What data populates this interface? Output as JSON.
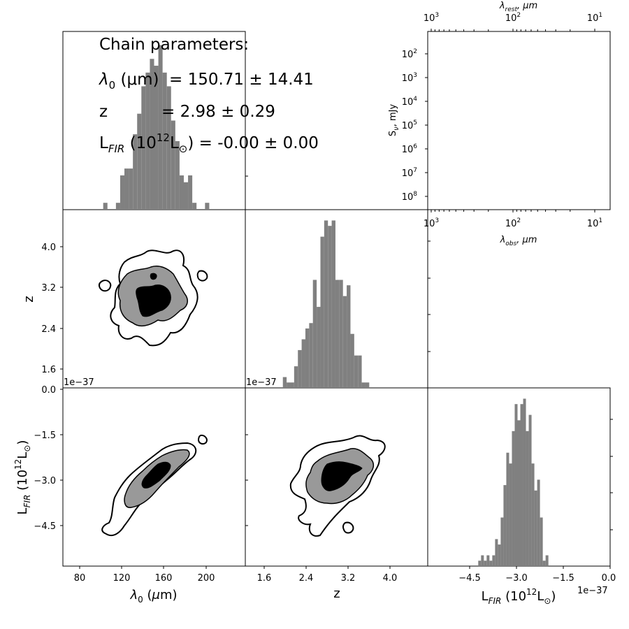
{
  "style": {
    "hist_color": "#808080",
    "contour_outer_fill": "#ffffff",
    "contour_mid_fill": "#999999",
    "contour_inner_fill": "#000000",
    "frame_color": "#000000"
  },
  "chain_parameters": {
    "heading": "Chain parameters:",
    "lines": [
      {
        "label": "λ0 (μm)",
        "label_sym": "λ",
        "label_sub": "0",
        "label_rest": " (μm)",
        "value": "= 150.71 ± 14.41"
      },
      {
        "label": "z",
        "value": "= 2.98 ± 0.29"
      },
      {
        "label": "LFIR (10^12 L⊙)",
        "value": "= -0.00 ± 0.00"
      }
    ]
  },
  "axes_text": {
    "lambda_label": "λ0 (μm)",
    "z_label": "z",
    "lfir_label": "LFIR (10^12 L⊙)",
    "offset_1e_37": "1e−37",
    "sed_ylabel": "Sν, mJy",
    "sed_xlabel_top": "λrest, μm",
    "sed_xlabel_bottom": "λobs, μm"
  },
  "chart_data": [
    {
      "type": "histogram",
      "panel": "lambda0-marginal",
      "xlim": [
        64,
        236
      ],
      "bin_edges_start": 102,
      "bin_width": 4,
      "counts": [
        1,
        0,
        0,
        1,
        5,
        6,
        6,
        11,
        14,
        18,
        20,
        22,
        21,
        24,
        20,
        18,
        13,
        10,
        5,
        4,
        5,
        1,
        0,
        0,
        1
      ],
      "ylim": [
        0,
        26
      ]
    },
    {
      "type": "histogram",
      "panel": "z-marginal",
      "xlim": [
        1.4,
        4.8
      ],
      "bin_edges_start": 2.1,
      "bin_width": 0.07,
      "counts": [
        2,
        1,
        1,
        4,
        7,
        9,
        11,
        12,
        20,
        15,
        28,
        31,
        30,
        31,
        20,
        20,
        17,
        19,
        10,
        6,
        6,
        1,
        1
      ],
      "ylim": [
        0,
        33
      ]
    },
    {
      "type": "histogram",
      "panel": "lfir-marginal",
      "xlim": [
        -6.5,
        0.0
      ],
      "bin_edges_start": -4.7,
      "bin_width": 0.1,
      "counts": [
        1,
        2,
        1,
        2,
        1,
        2,
        5,
        4,
        9,
        15,
        21,
        19,
        25,
        30,
        27,
        30,
        31,
        25,
        28,
        19,
        14,
        16,
        9,
        1,
        2
      ],
      "ylim": [
        0,
        33
      ]
    },
    {
      "type": "contour",
      "panel": "z-vs-lambda0",
      "xlim": [
        64,
        236
      ],
      "ylim": [
        1.5,
        4.8
      ],
      "xlabel": "",
      "ylabel": "z",
      "yticks": [
        "1.6",
        "2.4",
        "3.2",
        "4.0"
      ],
      "yticks_values": [
        1.6,
        2.4,
        3.2,
        4.0
      ]
    },
    {
      "type": "contour",
      "panel": "lfir-vs-lambda0",
      "xlim": [
        64,
        236
      ],
      "ylim": [
        -5.7,
        0.0
      ],
      "xlabel": "λ0 (μm)",
      "ylabel": "LFIR (10^12 L⊙)",
      "xticks": [
        "80",
        "120",
        "160",
        "200"
      ],
      "xticks_values": [
        80,
        120,
        160,
        200
      ],
      "yticks": [
        "0.0",
        "−1.5",
        "−3.0",
        "−4.5"
      ],
      "yticks_values": [
        0.0,
        -1.5,
        -3.0,
        -4.5
      ]
    },
    {
      "type": "contour",
      "panel": "lfir-vs-z",
      "xlim": [
        1.4,
        4.8
      ],
      "ylim": [
        -5.7,
        0.0
      ],
      "xlabel": "z",
      "ylabel": "",
      "xticks": [
        "1.6",
        "2.4",
        "3.2",
        "4.0"
      ],
      "xticks_values": [
        1.6,
        2.4,
        3.2,
        4.0
      ]
    },
    {
      "type": "line",
      "panel": "sed",
      "series": [],
      "xlabel_top": "λrest, μm",
      "xlabel_bottom": "λobs, μm",
      "ylabel": "Sν, mJy",
      "xscale": "log",
      "yscale": "log",
      "xticks_top": [
        "10",
        "10",
        "10"
      ],
      "xticks_top_exp": [
        "3",
        "2",
        "1"
      ],
      "xticks_bottom": [
        "10",
        "10",
        "10"
      ],
      "xticks_bottom_exp": [
        "3",
        "2",
        "1"
      ],
      "yticks": [
        "10",
        "10",
        "10",
        "10",
        "10",
        "10",
        "10",
        "10"
      ],
      "yticks_exp": [
        "1",
        "2",
        "3",
        "4",
        "5",
        "6",
        "7",
        "8"
      ]
    },
    {
      "type": "histogram-axis",
      "panel": "lfir-marginal-axis",
      "xlabel": "LFIR (10^12 L⊙)",
      "xticks": [
        "−4.5",
        "−3.0",
        "−1.5",
        "0.0"
      ],
      "xticks_values": [
        -4.5,
        -3.0,
        -1.5,
        0.0
      ]
    }
  ]
}
